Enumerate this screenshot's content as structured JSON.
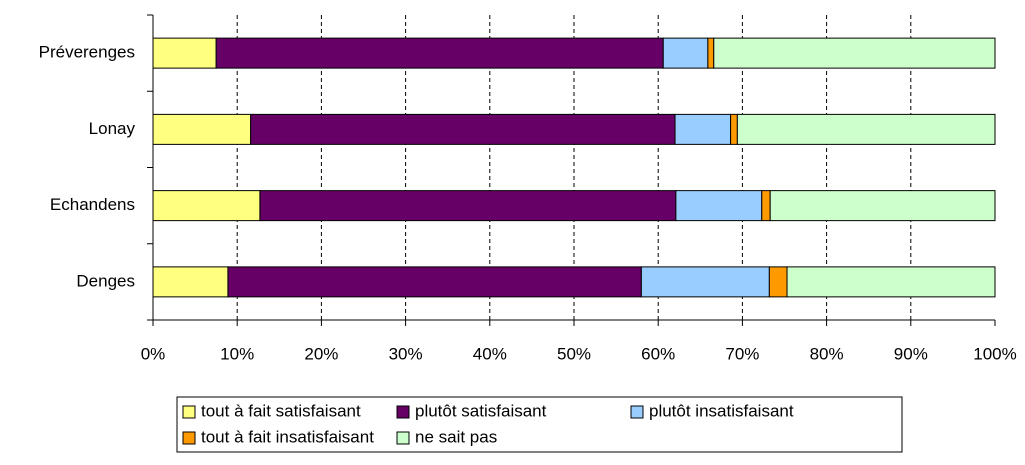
{
  "chart_data": {
    "type": "stacked_bar_horizontal",
    "categories": [
      "Préverenges",
      "Lonay",
      "Echandens",
      "Denges"
    ],
    "series": [
      {
        "name": "tout à fait satisfaisant",
        "color": "#ffff80",
        "values": [
          7.5,
          11.6,
          12.7,
          8.9
        ]
      },
      {
        "name": "plutôt satisfaisant",
        "color": "#660066",
        "values": [
          53.1,
          50.4,
          49.4,
          49.1
        ]
      },
      {
        "name": "plutôt insatisfaisant",
        "color": "#99ccff",
        "values": [
          5.3,
          6.6,
          10.2,
          15.2
        ]
      },
      {
        "name": "tout à fait insatisfaisant",
        "color": "#ff9900",
        "values": [
          0.7,
          0.8,
          1.0,
          2.1
        ]
      },
      {
        "name": "ne sait pas",
        "color": "#ccffcc",
        "values": [
          33.4,
          30.6,
          26.7,
          24.7
        ]
      }
    ],
    "xlim": [
      0,
      100
    ],
    "xticks": [
      {
        "value": 0,
        "label": "0%"
      },
      {
        "value": 10,
        "label": "10%"
      },
      {
        "value": 20,
        "label": "20%"
      },
      {
        "value": 30,
        "label": "30%"
      },
      {
        "value": 40,
        "label": "40%"
      },
      {
        "value": 50,
        "label": "50%"
      },
      {
        "value": 60,
        "label": "60%"
      },
      {
        "value": 70,
        "label": "70%"
      },
      {
        "value": 80,
        "label": "80%"
      },
      {
        "value": 90,
        "label": "90%"
      },
      {
        "value": 100,
        "label": "100%"
      }
    ],
    "grid": true,
    "legend": "bottom"
  }
}
